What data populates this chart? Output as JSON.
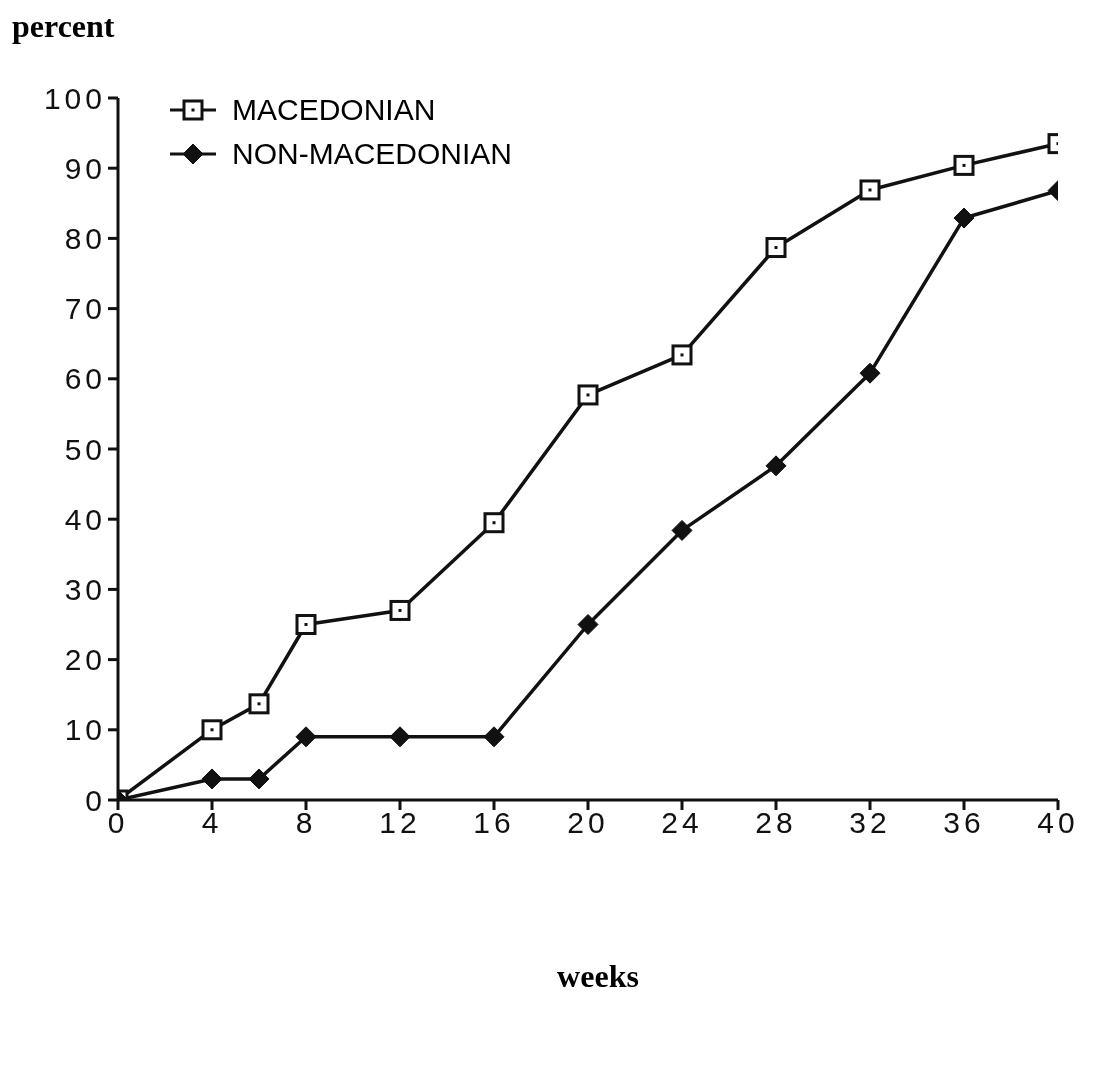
{
  "chart_data": {
    "type": "line",
    "xlabel": "weeks",
    "ylabel": "percent",
    "x": [
      0,
      4,
      6,
      8,
      12,
      16,
      20,
      24,
      28,
      32,
      36,
      40
    ],
    "series": [
      {
        "name": "MACEDONIAN",
        "color": "#111111",
        "marker": "square",
        "values": [
          0,
          10,
          13.7,
          25,
          27,
          39.5,
          57.7,
          63.4,
          78.7,
          86.9,
          90.4,
          93.5
        ]
      },
      {
        "name": "NON-MACEDONIAN",
        "color": "#111111",
        "marker": "diamond",
        "values": [
          0,
          3,
          3,
          9,
          9,
          9,
          25,
          38.4,
          47.6,
          60.8,
          82.9,
          86.8
        ]
      }
    ],
    "xlim": [
      0,
      40
    ],
    "xticks": [
      0,
      4,
      8,
      12,
      16,
      20,
      24,
      28,
      32,
      36,
      40
    ],
    "ylim": [
      0,
      100
    ],
    "yticks": [
      0,
      10,
      20,
      30,
      40,
      50,
      60,
      70,
      80,
      90,
      100
    ],
    "grid": false,
    "legend": "top left",
    "line_style": "solid"
  }
}
